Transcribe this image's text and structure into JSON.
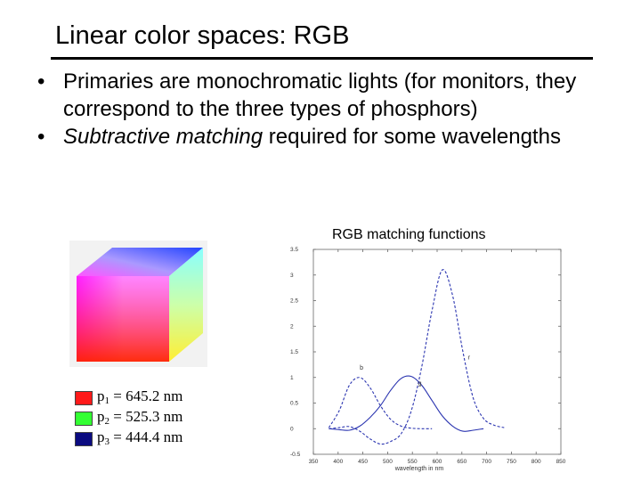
{
  "slide": {
    "title": "Linear color spaces: RGB",
    "bullets": [
      {
        "bullet": "•",
        "text": "Primaries are monochromatic lights (for monitors, they correspond to the three types of phosphors)"
      },
      {
        "bullet": "•",
        "italic": "Subtractive matching",
        "rest": " required for some wavelengths"
      }
    ]
  },
  "cube_legend": [
    {
      "sub": "1",
      "value": "645.2 nm",
      "color": "#ff1a1a"
    },
    {
      "sub": "2",
      "value": "525.3 nm",
      "color": "#33ff33"
    },
    {
      "sub": "3",
      "value": "444.4 nm",
      "color": "#0b0b80"
    }
  ],
  "chart_data": {
    "type": "line",
    "title": "RGB matching functions",
    "xlabel": "wavelength in nm",
    "ylabel": "",
    "xlim": [
      350,
      830
    ],
    "ylim": [
      -0.5,
      3.5
    ],
    "xticks": [
      "350",
      "400",
      "450",
      "500",
      "550",
      "600",
      "650",
      "700",
      "750",
      "800",
      "850"
    ],
    "yticks": [
      "-0.5",
      "0",
      "0.5",
      "1",
      "1.5",
      "2",
      "2.5",
      "3",
      "3.5"
    ],
    "series": [
      {
        "name": "r",
        "color": "#2a34b0",
        "style": "dashed",
        "x": [
          380,
          400,
          420,
          440,
          460,
          480,
          500,
          520,
          540,
          560,
          580,
          600,
          620,
          640,
          660,
          680,
          700,
          720
        ],
        "y": [
          0,
          0.02,
          0.04,
          -0.05,
          -0.2,
          -0.3,
          -0.25,
          -0.1,
          0.35,
          1.2,
          2.3,
          3.1,
          2.6,
          1.5,
          0.6,
          0.2,
          0.07,
          0.02
        ]
      },
      {
        "name": "g",
        "color": "#2a34b0",
        "style": "solid",
        "x": [
          380,
          400,
          420,
          440,
          460,
          480,
          500,
          520,
          540,
          560,
          580,
          600,
          620,
          640,
          660,
          680
        ],
        "y": [
          0,
          -0.02,
          -0.03,
          0.05,
          0.22,
          0.45,
          0.75,
          0.98,
          1.02,
          0.85,
          0.55,
          0.25,
          0.05,
          -0.05,
          -0.03,
          0
        ]
      },
      {
        "name": "b",
        "color": "#2a34b0",
        "style": "dashed",
        "x": [
          380,
          400,
          420,
          440,
          460,
          480,
          500,
          520,
          540,
          560,
          580
        ],
        "y": [
          0.02,
          0.35,
          0.85,
          1.0,
          0.8,
          0.45,
          0.18,
          0.05,
          0.01,
          0,
          0
        ]
      }
    ],
    "labels": [
      {
        "text": "b",
        "x": 440,
        "y": 1.15
      },
      {
        "text": "g",
        "x": 553,
        "y": 0.85
      },
      {
        "text": "r",
        "x": 650,
        "y": 1.35
      }
    ]
  }
}
